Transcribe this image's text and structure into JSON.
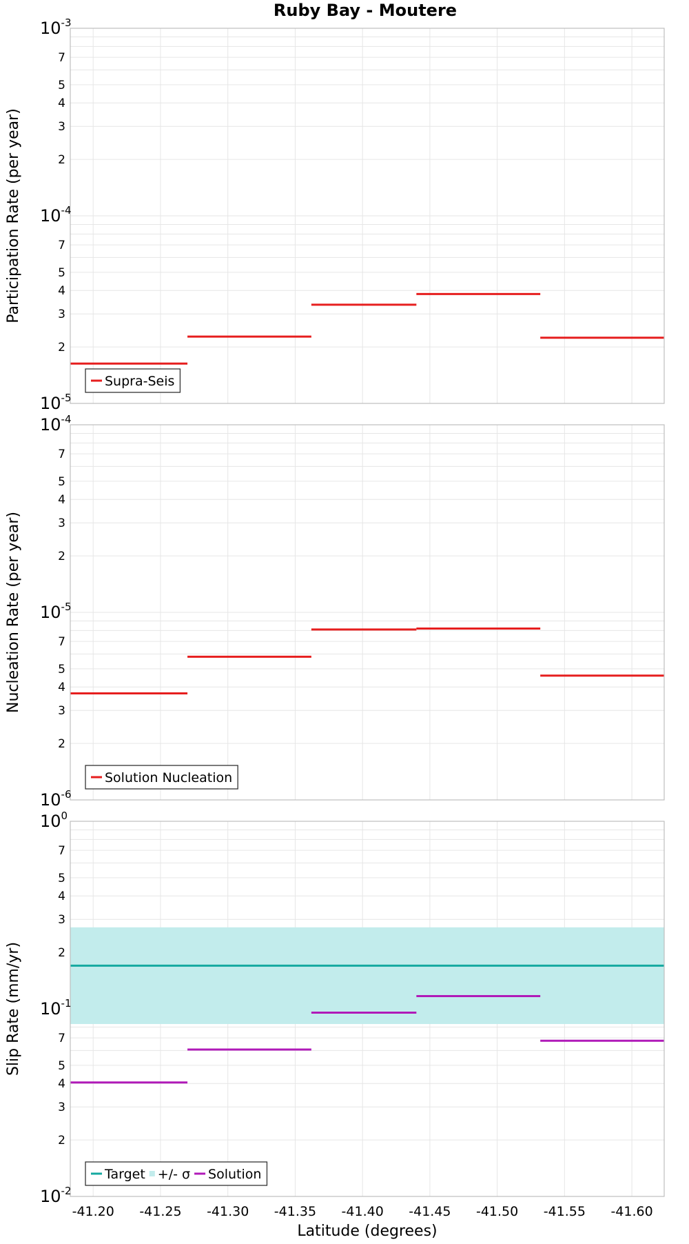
{
  "title": "Ruby Bay - Moutere",
  "chart_data": [
    {
      "type": "line",
      "name": "participation",
      "ylabel": "Participation Rate (per year)",
      "yscale": "log",
      "ylim_exp": [
        -5,
        -3
      ],
      "legend_location": "bottom-left",
      "series": [
        {
          "name": "Supra-Seis",
          "color": "#e61e1e",
          "segments": [
            {
              "x0": -41.183,
              "x1": -41.27,
              "y": 1.63e-05
            },
            {
              "x0": -41.27,
              "x1": -41.362,
              "y": 2.27e-05
            },
            {
              "x0": -41.362,
              "x1": -41.44,
              "y": 3.36e-05
            },
            {
              "x0": -41.44,
              "x1": -41.532,
              "y": 3.83e-05
            },
            {
              "x0": -41.532,
              "x1": -41.624,
              "y": 2.24e-05
            }
          ]
        }
      ]
    },
    {
      "type": "line",
      "name": "nucleation",
      "ylabel": "Nucleation Rate (per year)",
      "yscale": "log",
      "ylim_exp": [
        -6,
        -4
      ],
      "legend_location": "bottom-left",
      "series": [
        {
          "name": "Solution Nucleation",
          "color": "#e61e1e",
          "segments": [
            {
              "x0": -41.183,
              "x1": -41.27,
              "y": 3.7e-06
            },
            {
              "x0": -41.27,
              "x1": -41.362,
              "y": 5.8e-06
            },
            {
              "x0": -41.362,
              "x1": -41.44,
              "y": 8.1e-06
            },
            {
              "x0": -41.44,
              "x1": -41.532,
              "y": 8.2e-06
            },
            {
              "x0": -41.532,
              "x1": -41.624,
              "y": 4.6e-06
            }
          ]
        }
      ]
    },
    {
      "type": "line",
      "name": "slip",
      "ylabel": "Slip Rate (mm/yr)",
      "xlabel": "Latitude (degrees)",
      "yscale": "log",
      "ylim_exp": [
        -2,
        0
      ],
      "legend_location": "bottom-left",
      "band": {
        "name": "+/- σ",
        "color": "#c2ecec",
        "y_low": 0.083,
        "y_high": 0.272,
        "x0": -41.183,
        "x1": -41.624
      },
      "series": [
        {
          "name": "Target",
          "color": "#14a9a0",
          "segments": [
            {
              "x0": -41.183,
              "x1": -41.624,
              "y": 0.17
            }
          ]
        },
        {
          "name": "Solution",
          "color": "#b01ab8",
          "segments": [
            {
              "x0": -41.183,
              "x1": -41.27,
              "y": 0.0405
            },
            {
              "x0": -41.27,
              "x1": -41.362,
              "y": 0.0607
            },
            {
              "x0": -41.362,
              "x1": -41.44,
              "y": 0.0955
            },
            {
              "x0": -41.44,
              "x1": -41.532,
              "y": 0.117
            },
            {
              "x0": -41.532,
              "x1": -41.624,
              "y": 0.0676
            }
          ]
        }
      ]
    }
  ],
  "x_axis": {
    "xlim": [
      -41.183,
      -41.624
    ],
    "ticks": [
      -41.2,
      -41.25,
      -41.3,
      -41.35,
      -41.4,
      -41.45,
      -41.5,
      -41.55,
      -41.6
    ],
    "tick_labels": [
      "-41.20",
      "-41.25",
      "-41.30",
      "-41.35",
      "-41.40",
      "-41.45",
      "-41.50",
      "-41.55",
      "-41.60"
    ]
  },
  "y_axis_minor_labels": [
    "2",
    "3",
    "4",
    "5",
    "7"
  ],
  "y_axis_minor_values": [
    2,
    3,
    4,
    5,
    7
  ],
  "y_axis_major_base": "10"
}
